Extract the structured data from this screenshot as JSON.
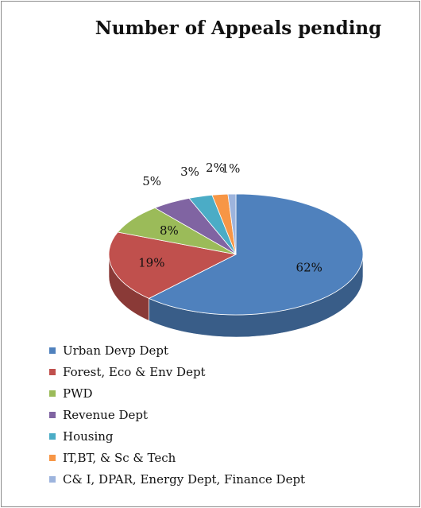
{
  "chart_data": {
    "type": "pie",
    "style": "3d",
    "title": "Number of Appeals pending",
    "slices": [
      {
        "label": "Urban Devp Dept",
        "value": 62,
        "display": "62%",
        "color": "#4F81BD"
      },
      {
        "label": "Forest, Eco & Env Dept",
        "value": 19,
        "display": "19%",
        "color": "#C0504D"
      },
      {
        "label": "PWD",
        "value": 8,
        "display": "8%",
        "color": "#9BBB59"
      },
      {
        "label": "Revenue Dept",
        "value": 5,
        "display": "5%",
        "color": "#8064A2"
      },
      {
        "label": "Housing",
        "value": 3,
        "display": "3%",
        "color": "#4BACC6"
      },
      {
        "label": "IT,BT, & Sc & Tech",
        "value": 2,
        "display": "2%",
        "color": "#F79646"
      },
      {
        "label": "C& I, DPAR, Energy Dept, Finance Dept",
        "value": 1,
        "display": "1%",
        "color": "#9DB4DD"
      }
    ],
    "legend_position": "bottom"
  }
}
